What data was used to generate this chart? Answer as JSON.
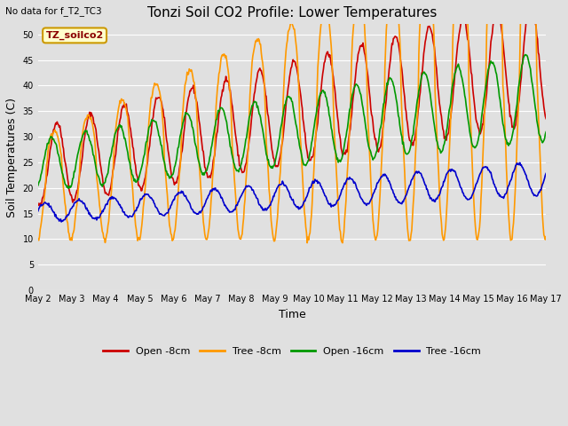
{
  "title": "Tonzi Soil CO2 Profile: Lower Temperatures",
  "top_left_text": "No data for f_T2_TC3",
  "legend_label_text": "TZ_soilco2",
  "xlabel": "Time",
  "ylabel": "Soil Temperatures (C)",
  "ylim": [
    0,
    52
  ],
  "yticks": [
    0,
    5,
    10,
    15,
    20,
    25,
    30,
    35,
    40,
    45,
    50
  ],
  "xtick_labels": [
    "May 2",
    "May 3",
    "May 4",
    "May 5",
    "May 6",
    "May 7",
    "May 8",
    "May 9",
    "May 10",
    "May 11",
    "May 12",
    "May 13",
    "May 14",
    "May 15",
    "May 16",
    "May 17"
  ],
  "series_colors": [
    "#cc0000",
    "#ff9900",
    "#009900",
    "#0000cc"
  ],
  "series_names": [
    "Open -8cm",
    "Tree -8cm",
    "Open -16cm",
    "Tree -16cm"
  ],
  "background_color": "#e0e0e0",
  "plot_bg_color": "#e0e0e0",
  "title_fontsize": 11,
  "axis_fontsize": 9
}
